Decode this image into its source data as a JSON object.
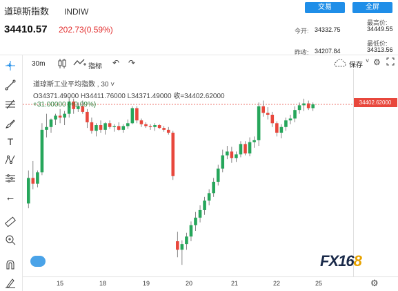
{
  "header": {
    "name": "道琼斯指数",
    "code": "INDIW",
    "price": "34410.57",
    "change": "202.73(0.59%)",
    "btn_trade": "交易",
    "btn_fullscreen": "全屏"
  },
  "stats": {
    "open_label": "今开:",
    "open": "34332.75",
    "high_label": "最高价:",
    "high": "34449.55",
    "prev_label": "昨收:",
    "prev": "34207.84",
    "low_label": "最低价:",
    "low": "34313.56"
  },
  "toolbar": {
    "interval": "30m",
    "indicators": "指标",
    "save": "保存"
  },
  "legend": {
    "title": "道琼斯工业平均指数 , 30 ˅",
    "ohlc": "O34371.49000  H34411.76000  L34371.49000  收=34402.62000",
    "change": "+31.00000 (+0.09%)"
  },
  "chart_data": {
    "type": "candlestick",
    "price_tag": "34402.62000",
    "x_tick_labels": [
      "15",
      "18",
      "19",
      "20",
      "21",
      "22",
      "25"
    ],
    "colors": {
      "up": "#26a65b",
      "down": "#e8473c"
    },
    "candles": [
      [
        33350,
        33700,
        33300,
        33620
      ],
      [
        33620,
        33800,
        33500,
        33560
      ],
      [
        33560,
        33700,
        33520,
        33680
      ],
      [
        33680,
        34200,
        33650,
        34130
      ],
      [
        34130,
        34300,
        34050,
        34160
      ],
      [
        34160,
        34250,
        34100,
        34240
      ],
      [
        34240,
        34300,
        34180,
        34280
      ],
      [
        34280,
        34350,
        34200,
        34260
      ],
      [
        34260,
        34330,
        34180,
        34300
      ],
      [
        34300,
        34480,
        34260,
        34430
      ],
      [
        34430,
        34460,
        34300,
        34350
      ],
      [
        34350,
        34420,
        34320,
        34380
      ],
      [
        34380,
        34440,
        34300,
        34320
      ],
      [
        34320,
        34350,
        34150,
        34210
      ],
      [
        34210,
        34260,
        34090,
        34120
      ],
      [
        34120,
        34200,
        34060,
        34180
      ],
      [
        34180,
        34230,
        34100,
        34130
      ],
      [
        34130,
        34210,
        34080,
        34200
      ],
      [
        34200,
        34230,
        34140,
        34160
      ],
      [
        34160,
        34190,
        34110,
        34170
      ],
      [
        34170,
        34210,
        34120,
        34130
      ],
      [
        34130,
        34190,
        34100,
        34170
      ],
      [
        34170,
        34240,
        34140,
        34200
      ],
      [
        34200,
        34380,
        34190,
        34360
      ],
      [
        34360,
        34380,
        34200,
        34230
      ],
      [
        34230,
        34250,
        34160,
        34190
      ],
      [
        34190,
        34210,
        34150,
        34170
      ],
      [
        34170,
        34190,
        34130,
        34160
      ],
      [
        34160,
        34200,
        34120,
        34180
      ],
      [
        34180,
        34190,
        34140,
        34150
      ],
      [
        34150,
        34170,
        34110,
        34130
      ],
      [
        34130,
        34160,
        34080,
        34100
      ],
      [
        34100,
        34120,
        33600,
        33640
      ],
      [
        32950,
        33050,
        32780,
        32860
      ],
      [
        32860,
        32960,
        32700,
        32920
      ],
      [
        32920,
        33040,
        32860,
        33000
      ],
      [
        33000,
        33160,
        32950,
        33120
      ],
      [
        33120,
        33260,
        33060,
        33200
      ],
      [
        33200,
        33330,
        33150,
        33280
      ],
      [
        33280,
        33420,
        33230,
        33380
      ],
      [
        33380,
        33500,
        33330,
        33460
      ],
      [
        33460,
        33620,
        33420,
        33580
      ],
      [
        33580,
        33760,
        33540,
        33720
      ],
      [
        33720,
        33920,
        33680,
        33860
      ],
      [
        33860,
        33960,
        33820,
        33900
      ],
      [
        33900,
        33950,
        33780,
        33830
      ],
      [
        33830,
        33900,
        33790,
        33870
      ],
      [
        33870,
        34010,
        33840,
        33980
      ],
      [
        33980,
        34010,
        33860,
        33880
      ],
      [
        33880,
        34050,
        33850,
        34000
      ],
      [
        34000,
        34060,
        33940,
        34020
      ],
      [
        34020,
        34420,
        33960,
        34380
      ],
      [
        34380,
        34440,
        34270,
        34310
      ],
      [
        34310,
        34370,
        34240,
        34290
      ],
      [
        34290,
        34320,
        34160,
        34200
      ],
      [
        34200,
        34220,
        34060,
        34100
      ],
      [
        34100,
        34190,
        34040,
        34160
      ],
      [
        34160,
        34260,
        34120,
        34230
      ],
      [
        34230,
        34290,
        34190,
        34250
      ],
      [
        34250,
        34380,
        34210,
        34340
      ],
      [
        34340,
        34420,
        34300,
        34390
      ],
      [
        34390,
        34460,
        34330,
        34410
      ],
      [
        34410,
        34440,
        34340,
        34360
      ],
      [
        34360,
        34420,
        34330,
        34400
      ]
    ],
    "price_min": 32650,
    "price_max": 34700
  }
}
